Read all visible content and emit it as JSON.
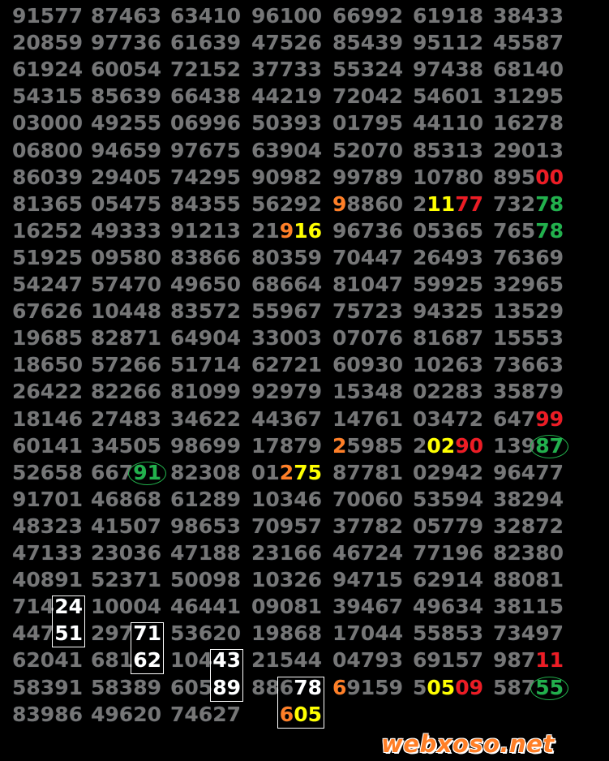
{
  "watermark": "webxoso.net",
  "colors": {
    "default": "#767676",
    "orange": "#ff7f27",
    "yellow": "#ffff00",
    "red": "#ed1c24",
    "green": "#22b14c",
    "white": "#ffffff",
    "background": "#000000"
  },
  "rows": [
    [
      "91577",
      "87463",
      "63410",
      "96100",
      "66992",
      "61918",
      "38433"
    ],
    [
      "20859",
      "97736",
      "61639",
      "47526",
      "85439",
      "95112",
      "45587"
    ],
    [
      "61924",
      "60054",
      "72152",
      "37733",
      "55324",
      "97438",
      "68140"
    ],
    [
      "54315",
      "85639",
      "66438",
      "44219",
      "72042",
      "54601",
      "31295"
    ],
    [
      "03000",
      "49255",
      "06996",
      "50393",
      "01795",
      "44110",
      "16278"
    ],
    [
      "06800",
      "94659",
      "97675",
      "63904",
      "52070",
      "85313",
      "29013"
    ],
    [
      "86039",
      "29405",
      "74295",
      "90982",
      "99789",
      "10780",
      [
        [
          "895",
          "g"
        ],
        [
          "00",
          "r"
        ]
      ]
    ],
    [
      "81365",
      "05475",
      "84355",
      "56292",
      [
        [
          "9",
          "o"
        ],
        [
          "8860",
          "g"
        ]
      ],
      [
        [
          "2",
          "g"
        ],
        [
          "11",
          "y"
        ],
        [
          "77",
          "r"
        ]
      ],
      [
        [
          "732",
          "g"
        ],
        [
          "78",
          "gr"
        ]
      ]
    ],
    [
      "16252",
      "49333",
      "91213",
      [
        [
          "21",
          "g"
        ],
        [
          "9",
          "o"
        ],
        [
          "16",
          "y"
        ]
      ],
      "96736",
      "05365",
      [
        [
          "765",
          "g"
        ],
        [
          "78",
          "gr"
        ]
      ]
    ],
    [
      "51925",
      "09580",
      "83866",
      "80359",
      "70447",
      "26493",
      "76369"
    ],
    [
      "54247",
      "57470",
      "49650",
      "68664",
      "81047",
      "59925",
      "32965"
    ],
    [
      "67626",
      "10448",
      "83572",
      "55967",
      "75723",
      "94325",
      "13529"
    ],
    [
      "19685",
      "82871",
      "64904",
      "33003",
      "07076",
      "81687",
      "15553"
    ],
    [
      "18650",
      "57266",
      "51714",
      "62721",
      "60930",
      "10263",
      "73663"
    ],
    [
      "26422",
      "82266",
      "81099",
      "92979",
      "15348",
      "02283",
      "35879"
    ],
    [
      "18146",
      "27483",
      "34622",
      "44367",
      "14761",
      "03472",
      [
        [
          "647",
          "g"
        ],
        [
          "99",
          "r"
        ]
      ]
    ],
    [
      "60141",
      "34505",
      "98699",
      "17879",
      [
        [
          "2",
          "o"
        ],
        [
          "5985",
          "g"
        ]
      ],
      [
        [
          "2",
          "g"
        ],
        [
          "02",
          "y"
        ],
        [
          "90",
          "r"
        ]
      ],
      [
        [
          "139",
          "g"
        ],
        [
          "87",
          "gr",
          "circle"
        ]
      ]
    ],
    [
      "52658",
      [
        [
          "667",
          "g"
        ],
        [
          "91",
          "gr",
          "circle"
        ]
      ],
      "82308",
      [
        [
          "01",
          "g"
        ],
        [
          "2",
          "o"
        ],
        [
          "75",
          "y"
        ]
      ],
      "87781",
      "02942",
      "96477"
    ],
    [
      "91701",
      "46868",
      "61289",
      "10346",
      "70060",
      "53594",
      "38294"
    ],
    [
      "48323",
      "41507",
      "98653",
      "70957",
      "37782",
      "05779",
      "32872"
    ],
    [
      "47133",
      "23036",
      "47188",
      "23166",
      "46724",
      "77196",
      "82380"
    ],
    [
      "40891",
      "52371",
      "50098",
      "10326",
      "94715",
      "62914",
      "88081"
    ],
    [
      [
        [
          "714",
          "g"
        ],
        [
          "24",
          "w",
          "A"
        ]
      ],
      "10004",
      "46441",
      "09081",
      "39467",
      "49634",
      "38115"
    ],
    [
      [
        [
          "447",
          "g"
        ],
        [
          "51",
          "w",
          "A"
        ]
      ],
      [
        [
          "297",
          "g"
        ],
        [
          "71",
          "w",
          "B"
        ]
      ],
      "53620",
      "19868",
      "17044",
      "55853",
      "73497"
    ],
    [
      "62041",
      [
        [
          "681",
          "g"
        ],
        [
          "62",
          "w",
          "B"
        ]
      ],
      [
        [
          "104",
          "g"
        ],
        [
          "43",
          "w",
          "C"
        ]
      ],
      "21544",
      "04793",
      "69157",
      [
        [
          "987",
          "g"
        ],
        [
          "11",
          "r"
        ]
      ]
    ],
    [
      "58391",
      "58389",
      [
        [
          "605",
          "g"
        ],
        [
          "89",
          "w",
          "C"
        ]
      ],
      [
        [
          "886",
          "g"
        ],
        [
          "78",
          "w",
          "D"
        ]
      ],
      [
        [
          "6",
          "o"
        ],
        [
          "9159",
          "g"
        ]
      ],
      [
        [
          "5",
          "g"
        ],
        [
          "05",
          "y"
        ],
        [
          "09",
          "r"
        ]
      ],
      [
        [
          "587",
          "g"
        ],
        [
          "55",
          "gr",
          "circle"
        ]
      ]
    ],
    [
      "83986",
      "49620",
      "74627",
      [
        [
          "6",
          "o",
          "D"
        ],
        [
          "05",
          "y",
          "D"
        ]
      ]
    ]
  ]
}
